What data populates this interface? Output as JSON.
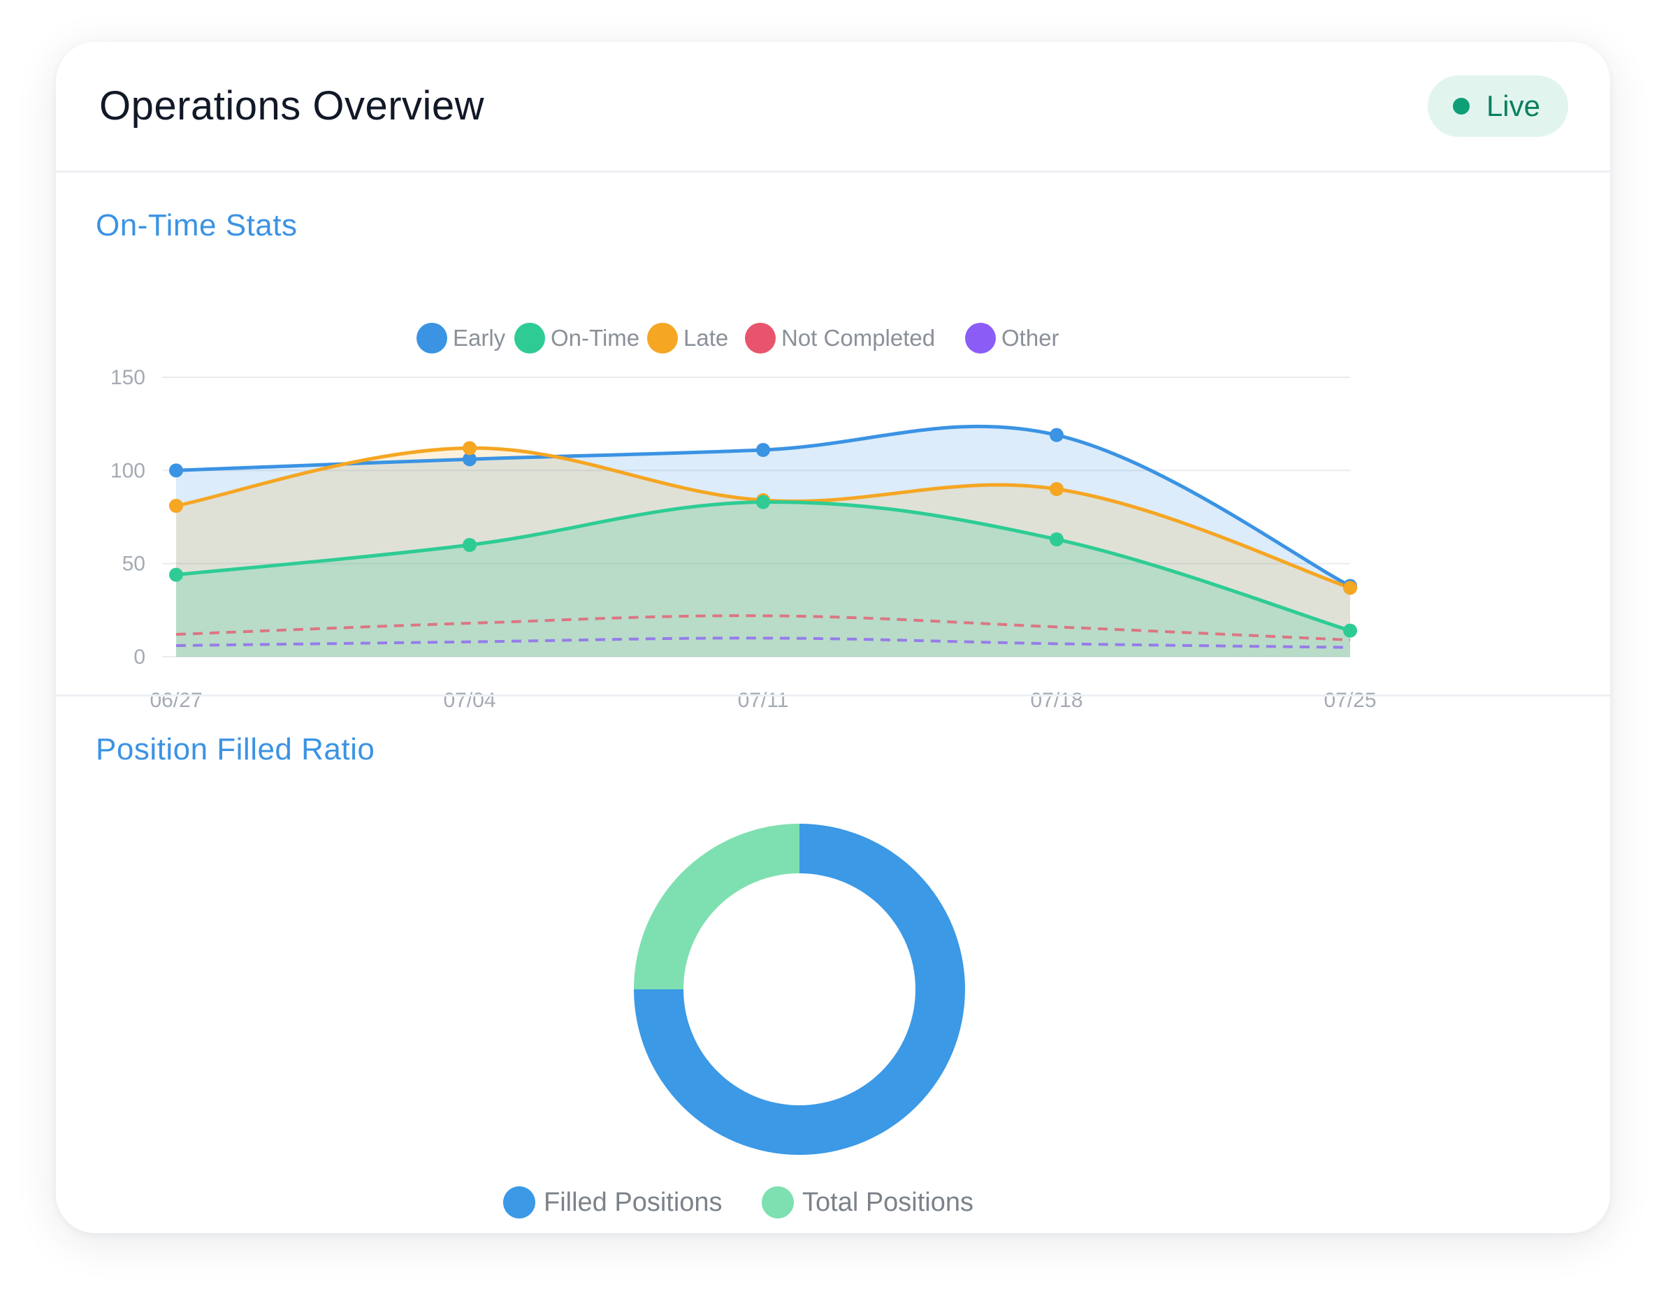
{
  "header": {
    "title": "Operations Overview",
    "status": "Live",
    "status_color": "#0f9f77"
  },
  "sections": {
    "ontime_title": "On-Time Stats",
    "ratio_title": "Position Filled Ratio"
  },
  "chart_data": [
    {
      "type": "area",
      "x": [
        "06/27",
        "07/04",
        "07/11",
        "07/18",
        "07/25"
      ],
      "ylim": [
        0,
        150
      ],
      "yticks": [
        0,
        50,
        100,
        150
      ],
      "grid": true,
      "legend_position": "top",
      "series": [
        {
          "name": "Early",
          "values": [
            100,
            106,
            111,
            119,
            38
          ],
          "color": "#3b93e3",
          "style": "solid"
        },
        {
          "name": "On-Time",
          "values": [
            44,
            60,
            83,
            63,
            14
          ],
          "color": "#2ecc94",
          "style": "solid"
        },
        {
          "name": "Late",
          "values": [
            81,
            112,
            84,
            90,
            37
          ],
          "color": "#f5a623",
          "style": "solid"
        },
        {
          "name": "Not Completed",
          "values": [
            12,
            18,
            22,
            16,
            9
          ],
          "color": "#e8546b",
          "style": "dashed"
        },
        {
          "name": "Other",
          "values": [
            6,
            8,
            10,
            7,
            5
          ],
          "color": "#8b5cf6",
          "style": "dashed"
        }
      ]
    },
    {
      "type": "pie",
      "donut": true,
      "legend_position": "bottom",
      "labels": [
        "Filled Positions",
        "Total Positions"
      ],
      "values": [
        75,
        25
      ],
      "colors": [
        "#3b99e6",
        "#7ee0b0"
      ]
    }
  ]
}
